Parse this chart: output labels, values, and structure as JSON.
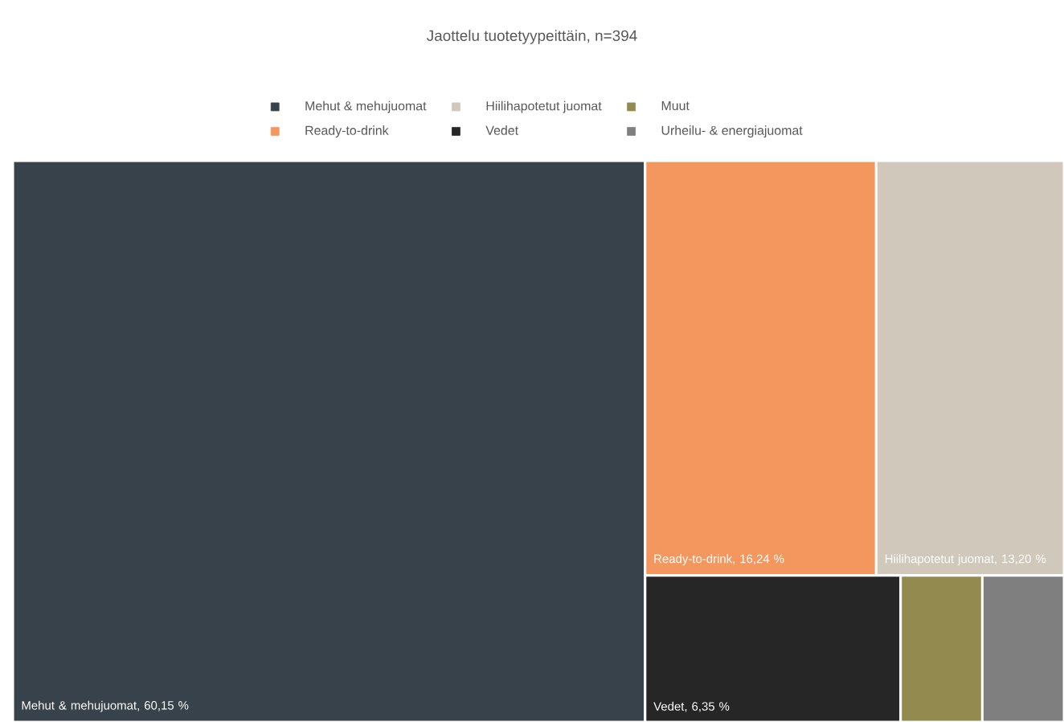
{
  "chart_data": {
    "type": "other",
    "title": "Jaottelu tuotetyypeittäin, n=394",
    "categories": [
      "Mehut & mehujuomat",
      "Ready-to-drink",
      "Hiilihapotetut juomat",
      "Vedet",
      "Muut",
      "Urheilu- & energiajuomat"
    ],
    "values": [
      60.15,
      16.24,
      13.2,
      6.35,
      null,
      null
    ],
    "value_labels": [
      ", 60,15 %",
      ", 16,24 %",
      ", 13,20 %",
      ", 6,35 %",
      null,
      null
    ],
    "colors": [
      "#37424a",
      "#f4975f",
      "#d0c9bb",
      "#262626",
      "#938a50",
      "#7f7f7f"
    ]
  }
}
